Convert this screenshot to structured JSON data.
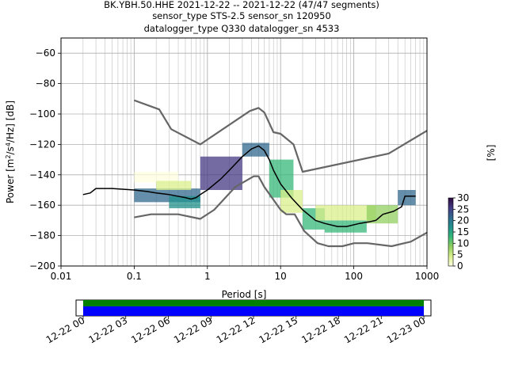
{
  "chart_data": {
    "type": "heatmap",
    "title_lines": [
      "BK.YBH.50.HHE   2021-12-22 -- 2021-12-22  (47/47 segments)",
      "sensor_type STS-2.5 sensor_sn 120950",
      "datalogger_type Q330 datalogger_sn 4533"
    ],
    "xlabel": "Period [s]",
    "ylabel_parts": [
      "Power [m",
      "2",
      "/s",
      "4",
      "/Hz] [dB]"
    ],
    "x_scale": "log",
    "xlim": [
      0.01,
      1000
    ],
    "ylim": [
      -200,
      -50
    ],
    "x_ticks": [
      {
        "value": 0.01,
        "label": "0.01"
      },
      {
        "value": 0.1,
        "label": "0.1"
      },
      {
        "value": 1,
        "label": "1"
      },
      {
        "value": 10,
        "label": "10"
      },
      {
        "value": 100,
        "label": "100"
      },
      {
        "value": 1000,
        "label": "1000"
      }
    ],
    "y_ticks": [
      {
        "value": -60,
        "label": "−60"
      },
      {
        "value": -80,
        "label": "−80"
      },
      {
        "value": -100,
        "label": "−100"
      },
      {
        "value": -120,
        "label": "−120"
      },
      {
        "value": -140,
        "label": "−140"
      },
      {
        "value": -160,
        "label": "−160"
      },
      {
        "value": -180,
        "label": "−180"
      },
      {
        "value": -200,
        "label": "−200"
      }
    ],
    "grid": true,
    "colorbar": {
      "label": "[%]",
      "range": [
        0,
        30
      ],
      "ticks": [
        {
          "value": 0,
          "label": "0"
        },
        {
          "value": 5,
          "label": "5"
        },
        {
          "value": 10,
          "label": "10"
        },
        {
          "value": 15,
          "label": "15"
        },
        {
          "value": 20,
          "label": "20"
        },
        {
          "value": 25,
          "label": "25"
        },
        {
          "value": 30,
          "label": "30"
        }
      ],
      "colormap": [
        "#ffffe0",
        "#d9ef8b",
        "#91cf60",
        "#35b779",
        "#21918c",
        "#31688e",
        "#443983",
        "#2d0b3e"
      ]
    },
    "series": [
      {
        "name": "NHNM",
        "color": "#666666",
        "points": [
          [
            0.1,
            -91
          ],
          [
            0.22,
            -97
          ],
          [
            0.32,
            -110
          ],
          [
            0.8,
            -120
          ],
          [
            3.8,
            -98
          ],
          [
            5,
            -96
          ],
          [
            6,
            -99
          ],
          [
            8,
            -112
          ],
          [
            10,
            -113
          ],
          [
            15,
            -120
          ],
          [
            20,
            -138
          ],
          [
            300,
            -126
          ],
          [
            1000,
            -111
          ]
        ]
      },
      {
        "name": "NLNM",
        "color": "#666666",
        "points": [
          [
            0.1,
            -168
          ],
          [
            0.17,
            -166
          ],
          [
            0.4,
            -166
          ],
          [
            0.8,
            -169
          ],
          [
            1.24,
            -163
          ],
          [
            2.4,
            -148
          ],
          [
            4.3,
            -141
          ],
          [
            5,
            -141
          ],
          [
            6,
            -148
          ],
          [
            10,
            -163
          ],
          [
            12,
            -166
          ],
          [
            15.6,
            -166
          ],
          [
            21,
            -177
          ],
          [
            32,
            -185
          ],
          [
            45,
            -187
          ],
          [
            70,
            -187
          ],
          [
            101,
            -185
          ],
          [
            154,
            -185
          ],
          [
            328,
            -187
          ],
          [
            600,
            -184
          ],
          [
            1000,
            -178
          ]
        ]
      },
      {
        "name": "mode",
        "color": "#000000",
        "points": [
          [
            0.02,
            -153
          ],
          [
            0.025,
            -152
          ],
          [
            0.03,
            -149
          ],
          [
            0.035,
            -149
          ],
          [
            0.05,
            -149
          ],
          [
            0.1,
            -150
          ],
          [
            0.15,
            -151
          ],
          [
            0.2,
            -152
          ],
          [
            0.3,
            -153
          ],
          [
            0.5,
            -155
          ],
          [
            0.6,
            -156
          ],
          [
            0.7,
            -155
          ],
          [
            0.8,
            -153
          ],
          [
            1,
            -150
          ],
          [
            1.5,
            -143
          ],
          [
            2,
            -137
          ],
          [
            3,
            -128
          ],
          [
            4,
            -123
          ],
          [
            5,
            -121
          ],
          [
            6,
            -124
          ],
          [
            7,
            -130
          ],
          [
            8,
            -137
          ],
          [
            10,
            -146
          ],
          [
            14,
            -155
          ],
          [
            20,
            -163
          ],
          [
            30,
            -170
          ],
          [
            40,
            -172
          ],
          [
            60,
            -174
          ],
          [
            80,
            -174
          ],
          [
            120,
            -172
          ],
          [
            160,
            -171
          ],
          [
            200,
            -170
          ],
          [
            250,
            -166
          ],
          [
            350,
            -164
          ],
          [
            450,
            -161
          ],
          [
            500,
            -154
          ],
          [
            700,
            -154
          ]
        ]
      }
    ],
    "density_bands": [
      {
        "x_from": 0.1,
        "x_to": 0.8,
        "y_from": -158,
        "y_to": -149,
        "percent": 22
      },
      {
        "x_from": 0.3,
        "x_to": 0.8,
        "y_from": -162,
        "y_to": -154,
        "percent": 18
      },
      {
        "x_from": 0.1,
        "x_to": 0.4,
        "y_from": -145,
        "y_to": -138,
        "percent": 2
      },
      {
        "x_from": 0.2,
        "x_to": 0.6,
        "y_from": -150,
        "y_to": -144,
        "percent": 3
      },
      {
        "x_from": 0.8,
        "x_to": 3,
        "y_from": -150,
        "y_to": -128,
        "percent": 24
      },
      {
        "x_from": 3,
        "x_to": 7,
        "y_from": -128,
        "y_to": -119,
        "percent": 20
      },
      {
        "x_from": 7,
        "x_to": 15,
        "y_from": -155,
        "y_to": -130,
        "percent": 14
      },
      {
        "x_from": 10,
        "x_to": 20,
        "y_from": -165,
        "y_to": -150,
        "percent": 4
      },
      {
        "x_from": 20,
        "x_to": 40,
        "y_from": -176,
        "y_to": -162,
        "percent": 14
      },
      {
        "x_from": 40,
        "x_to": 150,
        "y_from": -178,
        "y_to": -170,
        "percent": 12
      },
      {
        "x_from": 30,
        "x_to": 200,
        "y_from": -170,
        "y_to": -160,
        "percent": 3
      },
      {
        "x_from": 150,
        "x_to": 400,
        "y_from": -172,
        "y_to": -160,
        "percent": 10
      },
      {
        "x_from": 400,
        "x_to": 700,
        "y_from": -160,
        "y_to": -150,
        "percent": 22
      }
    ],
    "coverage": {
      "time_ticks": [
        "12-22 00",
        "12-22 03",
        "12-22 06",
        "12-22 09",
        "12-22 12",
        "12-22 15",
        "12-22 18",
        "12-22 21",
        "12-23 00"
      ],
      "range_hours": [
        -0.5,
        24.5
      ],
      "data_start_hour": 0,
      "data_end_hour": 24,
      "data_color": "#0000ff",
      "used_color": "#008000"
    }
  }
}
